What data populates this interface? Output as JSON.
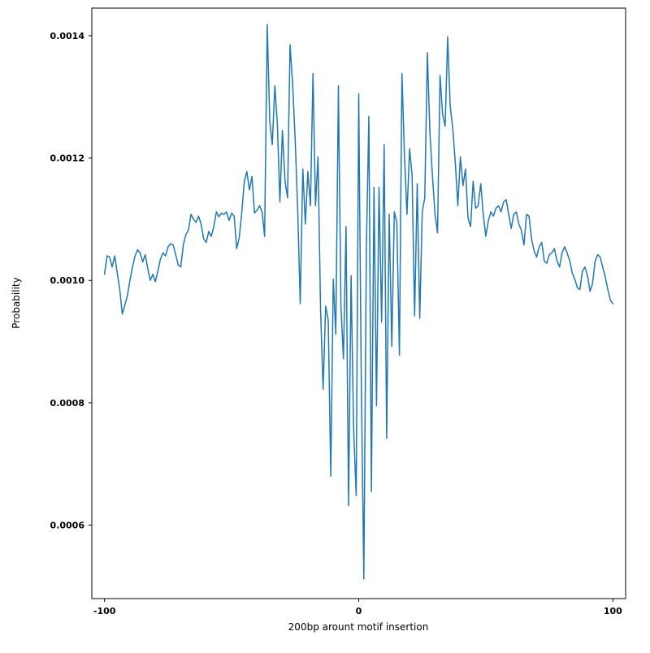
{
  "figure": {
    "background": "#ffffff"
  },
  "chart_data": {
    "type": "line",
    "title": "",
    "xlabel": "200bp arount motif insertion",
    "ylabel": "Probability",
    "line_color": "#1f77b4",
    "line_width": 1.5,
    "grid": false,
    "legend": "none",
    "xlim": [
      -105,
      105
    ],
    "ylim": [
      0.00048,
      0.001445
    ],
    "xticks": [
      -100,
      0,
      100
    ],
    "xtick_labels": [
      "-100",
      "0",
      "100"
    ],
    "yticks": [
      0.0006,
      0.0008,
      0.001,
      0.0012,
      0.0014
    ],
    "ytick_labels": [
      "0.0006",
      "0.0008",
      "0.0010",
      "0.0012",
      "0.0014"
    ],
    "x": [
      -100,
      -99,
      -98,
      -97,
      -96,
      -95,
      -94,
      -93,
      -92,
      -91,
      -90,
      -89,
      -88,
      -87,
      -86,
      -85,
      -84,
      -83,
      -82,
      -81,
      -80,
      -79,
      -78,
      -77,
      -76,
      -75,
      -74,
      -73,
      -72,
      -71,
      -70,
      -69,
      -68,
      -67,
      -66,
      -65,
      -64,
      -63,
      -62,
      -61,
      -60,
      -59,
      -58,
      -57,
      -56,
      -55,
      -54,
      -53,
      -52,
      -51,
      -50,
      -49,
      -48,
      -47,
      -46,
      -45,
      -44,
      -43,
      -42,
      -41,
      -40,
      -39,
      -38,
      -37,
      -36,
      -35,
      -34,
      -33,
      -32,
      -31,
      -30,
      -29,
      -28,
      -27,
      -26,
      -25,
      -24,
      -23,
      -22,
      -21,
      -20,
      -19,
      -18,
      -17,
      -16,
      -15,
      -14,
      -13,
      -12,
      -11,
      -10,
      -9,
      -8,
      -7,
      -6,
      -5,
      -4,
      -3,
      -2,
      -1,
      0,
      1,
      2,
      3,
      4,
      5,
      6,
      7,
      8,
      9,
      10,
      11,
      12,
      13,
      14,
      15,
      16,
      17,
      18,
      19,
      20,
      21,
      22,
      23,
      24,
      25,
      26,
      27,
      28,
      29,
      30,
      31,
      32,
      33,
      34,
      35,
      36,
      37,
      38,
      39,
      40,
      41,
      42,
      43,
      44,
      45,
      46,
      47,
      48,
      49,
      50,
      51,
      52,
      53,
      54,
      55,
      56,
      57,
      58,
      59,
      60,
      61,
      62,
      63,
      64,
      65,
      66,
      67,
      68,
      69,
      70,
      71,
      72,
      73,
      74,
      75,
      76,
      77,
      78,
      79,
      80,
      81,
      82,
      83,
      84,
      85,
      86,
      87,
      88,
      89,
      90,
      91,
      92,
      93,
      94,
      95,
      96,
      97,
      98,
      99,
      100
    ],
    "y": [
      0.00101,
      0.00104,
      0.001038,
      0.001022,
      0.00104,
      0.001012,
      0.000985,
      0.000945,
      0.00096,
      0.000975,
      0.001,
      0.001022,
      0.00104,
      0.00105,
      0.001045,
      0.00103,
      0.001042,
      0.00102,
      0.001,
      0.00101,
      0.000998,
      0.001015,
      0.001035,
      0.001045,
      0.00104,
      0.001055,
      0.00106,
      0.001058,
      0.001042,
      0.001025,
      0.001022,
      0.001058,
      0.001075,
      0.001082,
      0.001108,
      0.0011,
      0.001095,
      0.001105,
      0.001092,
      0.001068,
      0.001062,
      0.00108,
      0.001072,
      0.001088,
      0.001112,
      0.001104,
      0.00111,
      0.001108,
      0.001112,
      0.001098,
      0.00111,
      0.001105,
      0.001052,
      0.00107,
      0.001112,
      0.001162,
      0.001178,
      0.001148,
      0.00117,
      0.00111,
      0.001115,
      0.001122,
      0.001112,
      0.001072,
      0.001418,
      0.00126,
      0.001222,
      0.001318,
      0.001255,
      0.001128,
      0.001245,
      0.001162,
      0.001135,
      0.001385,
      0.00132,
      0.00123,
      0.001115,
      0.000962,
      0.001182,
      0.001092,
      0.001178,
      0.001122,
      0.001338,
      0.001122,
      0.001202,
      0.000948,
      0.000822,
      0.000958,
      0.000935,
      0.00068,
      0.001002,
      0.000912,
      0.001318,
      0.000958,
      0.000872,
      0.001088,
      0.000632,
      0.001008,
      0.000758,
      0.000648,
      0.001305,
      0.000842,
      0.000512,
      0.001052,
      0.001268,
      0.000655,
      0.001152,
      0.000795,
      0.001152,
      0.000932,
      0.001222,
      0.000742,
      0.001108,
      0.000892,
      0.001112,
      0.001095,
      0.000878,
      0.001338,
      0.001205,
      0.001108,
      0.001215,
      0.001172,
      0.000942,
      0.001158,
      0.000938,
      0.001112,
      0.001135,
      0.001372,
      0.001242,
      0.001172,
      0.001108,
      0.001078,
      0.001335,
      0.001272,
      0.001252,
      0.001398,
      0.001285,
      0.001248,
      0.001192,
      0.001122,
      0.001202,
      0.001155,
      0.001182,
      0.001102,
      0.001088,
      0.001162,
      0.001118,
      0.001122,
      0.001158,
      0.001108,
      0.001072,
      0.001098,
      0.001112,
      0.001105,
      0.001118,
      0.001122,
      0.001112,
      0.001128,
      0.001132,
      0.001108,
      0.001085,
      0.001108,
      0.001112,
      0.001092,
      0.001082,
      0.001058,
      0.001108,
      0.001105,
      0.001068,
      0.001048,
      0.001038,
      0.001055,
      0.001062,
      0.001032,
      0.001028,
      0.001042,
      0.001045,
      0.001052,
      0.001032,
      0.001022,
      0.001045,
      0.001055,
      0.001045,
      0.001032,
      0.001012,
      0.001002,
      0.000988,
      0.000985,
      0.001015,
      0.001022,
      0.001008,
      0.000982,
      0.000995,
      0.001032,
      0.001042,
      0.001038,
      0.001022,
      0.001005,
      0.000985,
      0.000968,
      0.000962
    ]
  }
}
